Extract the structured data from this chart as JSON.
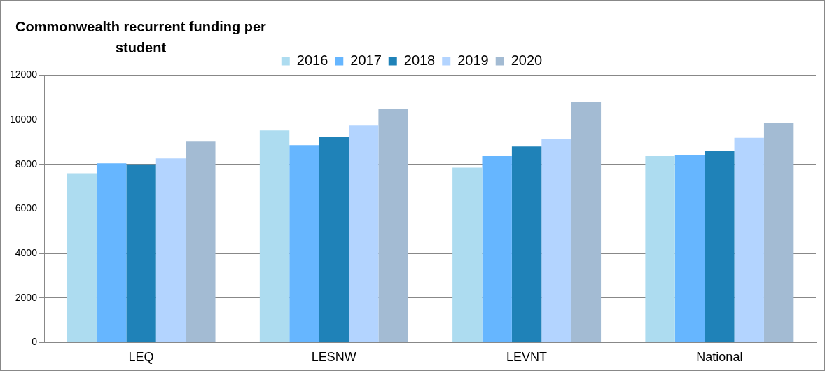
{
  "chart_data": {
    "type": "bar",
    "title": "Commonwealth recurrent funding per student",
    "categories": [
      "LEQ",
      "LESNW",
      "LEVNT",
      "National"
    ],
    "series": [
      {
        "name": "2016",
        "color": "#addcf0",
        "values": [
          7600,
          9520,
          7850,
          8370
        ]
      },
      {
        "name": "2017",
        "color": "#66b6ff",
        "values": [
          8050,
          8860,
          8370,
          8400
        ]
      },
      {
        "name": "2018",
        "color": "#1f82b8",
        "values": [
          8000,
          9220,
          8800,
          8600
        ]
      },
      {
        "name": "2019",
        "color": "#b3d4ff",
        "values": [
          8270,
          9740,
          9120,
          9190
        ]
      },
      {
        "name": "2020",
        "color": "#a3bbd3",
        "values": [
          9020,
          10500,
          10790,
          9880
        ]
      }
    ],
    "ylim": [
      0,
      12000
    ],
    "yticks": [
      0,
      2000,
      4000,
      6000,
      8000,
      10000,
      12000
    ],
    "grid": "y",
    "legend": "top"
  }
}
